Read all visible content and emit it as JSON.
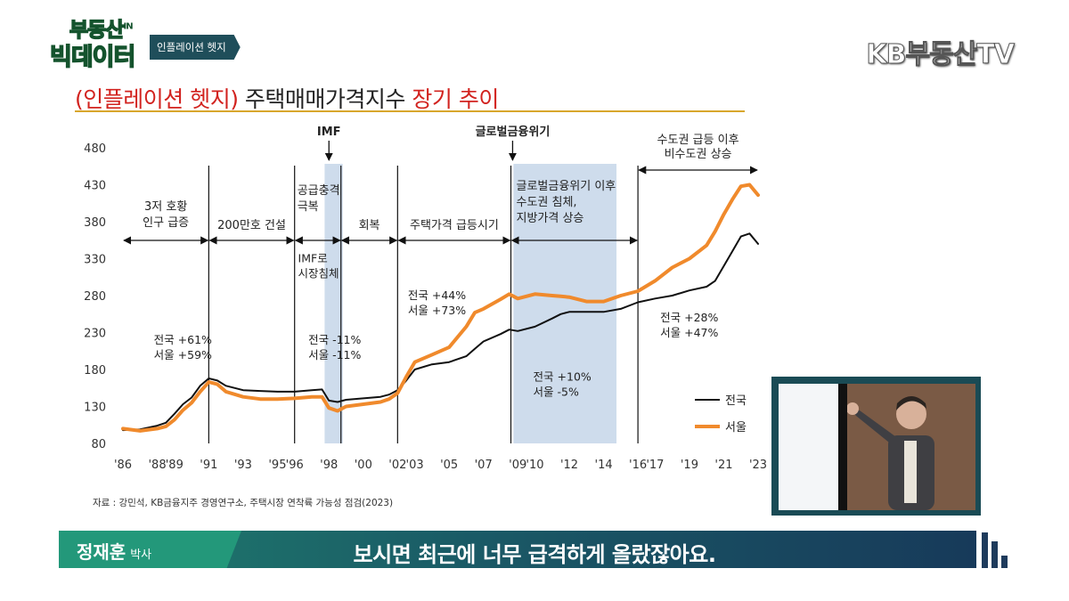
{
  "header": {
    "logo_line1": "부동산",
    "logo_in": "IN",
    "logo_line2": "빅데이터",
    "segment": "인플레이션 헷지",
    "channel": "KB부동산TV"
  },
  "title": {
    "part1": "(인플레이션 헷지)",
    "part2": " 주택매매가격지수 ",
    "part3": "장기 추이"
  },
  "source": "자료 : 강민석, KB금융지주 경영연구소, 주택시장 연착륙 가능성 점검(2023)",
  "lower_third": {
    "speaker": "정재훈",
    "speaker_title": "박사",
    "caption": "보시면 최근에 너무 급격하게 올랐잖아요."
  },
  "colors": {
    "national": "#111111",
    "seoul": "#f08a2c",
    "shade": "#c9d8ea",
    "accent": "#d2231f"
  },
  "chart_data": {
    "type": "line",
    "title": "",
    "xlabel": "",
    "ylabel": "",
    "ylim": [
      80,
      480
    ],
    "yticks": [
      80,
      130,
      180,
      230,
      280,
      330,
      380,
      430,
      480
    ],
    "xlim": [
      1986,
      2023
    ],
    "xticks": [
      1986,
      1988,
      1989,
      1991,
      1993,
      1995,
      1996,
      1998,
      2000,
      2002,
      2003,
      2005,
      2007,
      2009,
      2010,
      2012,
      2014,
      2016,
      2017,
      2019,
      2021,
      2023
    ],
    "xtick_labels": [
      "'86",
      "'88",
      "'89",
      "'91",
      "'93",
      "'95",
      "'96",
      "'98",
      "'00",
      "'02",
      "'03",
      "'05",
      "'07",
      "'09",
      "'10",
      "'12",
      "'14",
      "'16",
      "'17",
      "'19",
      "'21",
      "'23"
    ],
    "series": [
      {
        "name": "전국",
        "color": "#111111",
        "x": [
          1986,
          1987,
          1988,
          1988.5,
          1989,
          1989.5,
          1990,
          1990.5,
          1991,
          1991.5,
          1992,
          1993,
          1994,
          1995,
          1996,
          1997,
          1997.6,
          1998,
          1998.5,
          1999,
          2000,
          2001,
          2001.5,
          2002,
          2002.5,
          2003,
          2004,
          2005,
          2006,
          2006.5,
          2007,
          2008,
          2008.5,
          2009,
          2010,
          2011,
          2011.5,
          2012,
          2013,
          2014,
          2015,
          2016,
          2017,
          2018,
          2019,
          2020,
          2020.5,
          2021,
          2021.5,
          2022,
          2022.5,
          2023
        ],
        "y": [
          98,
          99,
          104,
          108,
          120,
          133,
          142,
          158,
          168,
          165,
          158,
          152,
          151,
          150,
          150,
          152,
          153,
          138,
          136,
          139,
          141,
          143,
          146,
          152,
          165,
          180,
          187,
          190,
          198,
          208,
          218,
          228,
          234,
          232,
          238,
          249,
          255,
          258,
          258,
          258,
          262,
          271,
          276,
          280,
          287,
          292,
          300,
          320,
          340,
          360,
          364,
          350
        ]
      },
      {
        "name": "서울",
        "color": "#f08a2c",
        "x": [
          1986,
          1987,
          1988,
          1988.5,
          1989,
          1989.5,
          1990,
          1990.5,
          1991,
          1991.5,
          1992,
          1993,
          1994,
          1995,
          1996,
          1997,
          1997.6,
          1998,
          1998.5,
          1999,
          2000,
          2001,
          2001.5,
          2002,
          2002.5,
          2003,
          2004,
          2005,
          2006,
          2006.5,
          2007,
          2008,
          2008.5,
          2009,
          2010,
          2011,
          2011.5,
          2012,
          2013,
          2014,
          2015,
          2016,
          2017,
          2018,
          2019,
          2020,
          2020.5,
          2021,
          2021.5,
          2022,
          2022.5,
          2023
        ],
        "y": [
          100,
          97,
          100,
          103,
          112,
          125,
          135,
          150,
          163,
          160,
          150,
          143,
          140,
          140,
          141,
          143,
          143,
          128,
          124,
          130,
          133,
          136,
          140,
          148,
          170,
          190,
          200,
          210,
          238,
          257,
          262,
          275,
          282,
          276,
          282,
          280,
          279,
          278,
          272,
          272,
          280,
          286,
          300,
          318,
          330,
          348,
          367,
          390,
          410,
          428,
          430,
          416
        ]
      }
    ],
    "shaded_periods": [
      {
        "x0": 1997.75,
        "x1": 1998.8
      },
      {
        "x0": 2008.75,
        "x1": 2014.75
      }
    ],
    "period_dividers": [
      1991,
      1996,
      1998.7,
      2002,
      2008.6,
      2016
    ],
    "period_labels": [
      {
        "text": "3저 호황\n인구 급증",
        "x0": 1986,
        "x1": 1991
      },
      {
        "text": "200만호 건설",
        "x0": 1991,
        "x1": 1996
      },
      {
        "text": "공급충격\n극복",
        "x0": 1996,
        "x1": 1998.7,
        "pos": "above"
      },
      {
        "text": "회복",
        "x0": 1998.7,
        "x1": 2002
      },
      {
        "text": "주택가격 급등시기",
        "x0": 2002,
        "x1": 2008.6
      },
      {
        "text": "글로벌금융위기 이후\n수도권 침체,\n지방가격 상승",
        "x0": 2008.6,
        "x1": 2016
      },
      {
        "text": "수도권 급등 이후\n비수도권 상승",
        "x0": 2016,
        "x1": 2023,
        "pos": "top"
      }
    ],
    "event_markers": [
      {
        "text": "IMF",
        "x": 1998
      },
      {
        "text": "글로벌금융위기",
        "x": 2008.7
      }
    ],
    "annotations": [
      {
        "text": "전국 +61%\n서울 +59%",
        "x": 1987.8,
        "y": 215
      },
      {
        "text": "IMF로\n시장침체",
        "x": 1996.2,
        "y": 325
      },
      {
        "text": "전국 -11%\n서울 -11%",
        "x": 1996.8,
        "y": 215
      },
      {
        "text": "전국 +44%\n서울 +73%",
        "x": 2002.6,
        "y": 275
      },
      {
        "text": "전국 +10%\n서울 -5%",
        "x": 2009.9,
        "y": 165
      },
      {
        "text": "전국 +28%\n서울 +47%",
        "x": 2017.3,
        "y": 245
      }
    ],
    "legend": {
      "position": "right",
      "entries": [
        "전국",
        "서울"
      ]
    },
    "grid": false
  }
}
